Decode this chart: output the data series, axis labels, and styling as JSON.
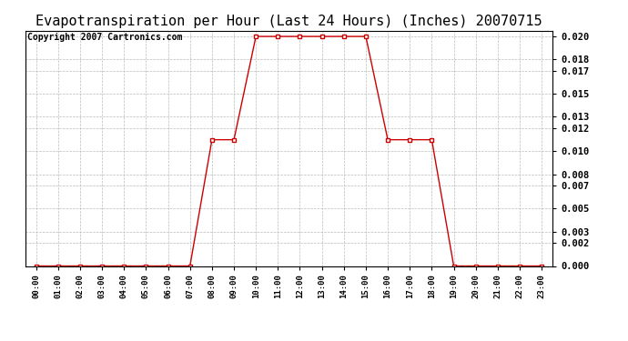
{
  "title": "Evapotranspiration per Hour (Last 24 Hours) (Inches) 20070715",
  "copyright_text": "Copyright 2007 Cartronics.com",
  "hours": [
    0,
    1,
    2,
    3,
    4,
    5,
    6,
    7,
    8,
    9,
    10,
    11,
    12,
    13,
    14,
    15,
    16,
    17,
    18,
    19,
    20,
    21,
    22,
    23
  ],
  "values": [
    0.0,
    0.0,
    0.0,
    0.0,
    0.0,
    0.0,
    0.0,
    0.0,
    0.011,
    0.011,
    0.02,
    0.02,
    0.02,
    0.02,
    0.02,
    0.02,
    0.011,
    0.011,
    0.011,
    0.0,
    0.0,
    0.0,
    0.0,
    0.0
  ],
  "xlabels": [
    "00:00",
    "01:00",
    "02:00",
    "03:00",
    "04:00",
    "05:00",
    "06:00",
    "07:00",
    "08:00",
    "09:00",
    "10:00",
    "11:00",
    "12:00",
    "13:00",
    "14:00",
    "15:00",
    "16:00",
    "17:00",
    "18:00",
    "19:00",
    "20:00",
    "21:00",
    "22:00",
    "23:00"
  ],
  "yticks": [
    0.0,
    0.002,
    0.003,
    0.005,
    0.007,
    0.008,
    0.01,
    0.012,
    0.013,
    0.015,
    0.017,
    0.018,
    0.02
  ],
  "line_color": "#cc0000",
  "marker_color": "#cc0000",
  "bg_color": "#ffffff",
  "grid_color": "#bbbbbb",
  "title_fontsize": 11,
  "copyright_fontsize": 7,
  "ylim": [
    0.0,
    0.0205
  ]
}
